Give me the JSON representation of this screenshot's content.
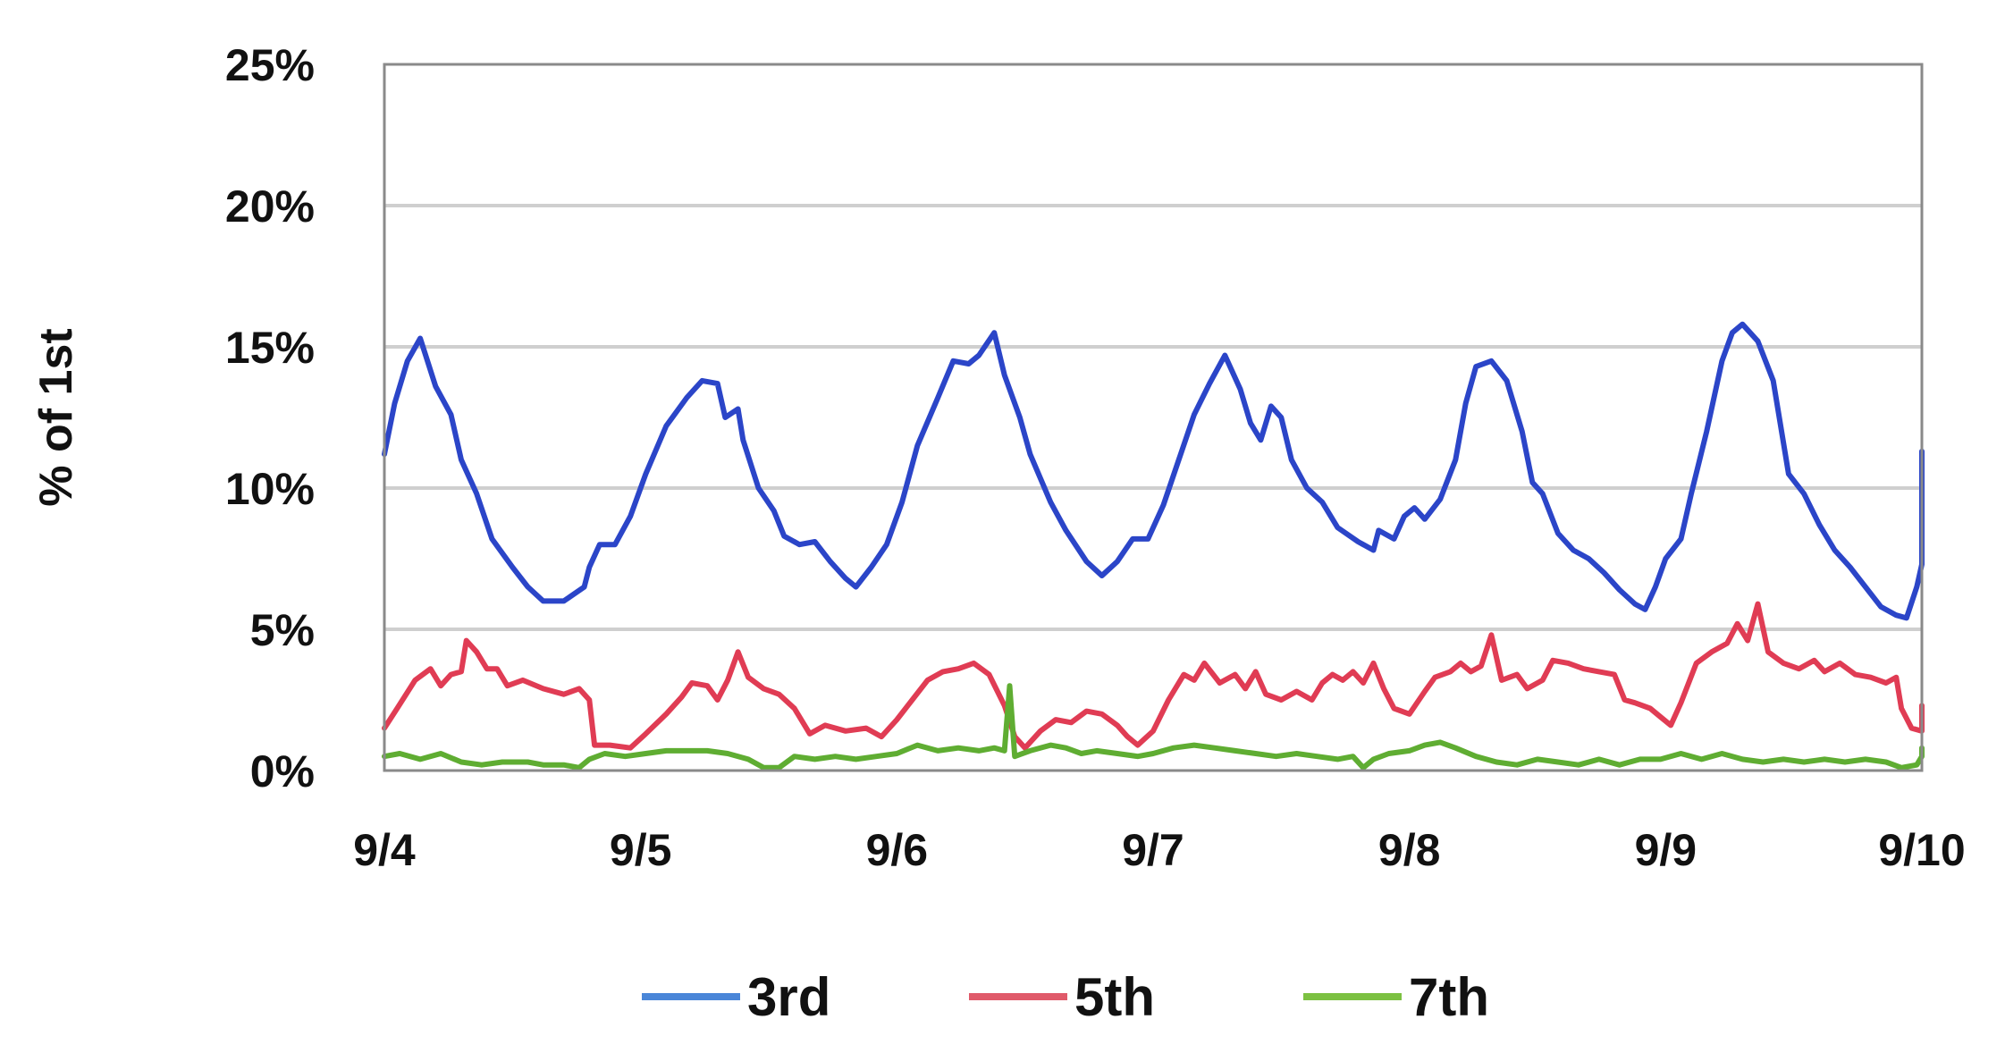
{
  "chart_data": {
    "type": "line",
    "title": "",
    "xlabel": "",
    "ylabel": "% of 1st",
    "ylim": [
      0,
      25
    ],
    "yticks": [
      0,
      5,
      10,
      15,
      20,
      25
    ],
    "ytick_labels": [
      "0%",
      "5%",
      "10%",
      "15%",
      "20%",
      "25%"
    ],
    "xlim": [
      0,
      6
    ],
    "xticks": [
      0,
      1,
      2,
      3,
      4,
      5,
      6
    ],
    "xtick_labels": [
      "9/4",
      "9/5",
      "9/6",
      "9/7",
      "9/8",
      "9/9",
      "9/10"
    ],
    "grid": "horizontal",
    "legend_position": "bottom",
    "series": [
      {
        "name": "3rd",
        "color": "#2b45c8",
        "legend_color": "#4a86d8",
        "points": [
          [
            0,
            11.2
          ],
          [
            0.04,
            13
          ],
          [
            0.09,
            14.5
          ],
          [
            0.14,
            15.3
          ],
          [
            0.2,
            13.6
          ],
          [
            0.26,
            12.6
          ],
          [
            0.3,
            11
          ],
          [
            0.36,
            9.8
          ],
          [
            0.42,
            8.2
          ],
          [
            0.5,
            7.2
          ],
          [
            0.56,
            6.5
          ],
          [
            0.62,
            6
          ],
          [
            0.7,
            6
          ],
          [
            0.78,
            6.5
          ],
          [
            0.8,
            7.2
          ],
          [
            0.84,
            8
          ],
          [
            0.9,
            8
          ],
          [
            0.96,
            9
          ],
          [
            1.02,
            10.5
          ],
          [
            1.1,
            12.2
          ],
          [
            1.18,
            13.2
          ],
          [
            1.24,
            13.8
          ],
          [
            1.3,
            13.7
          ],
          [
            1.33,
            12.5
          ],
          [
            1.38,
            12.8
          ],
          [
            1.4,
            11.7
          ],
          [
            1.46,
            10
          ],
          [
            1.52,
            9.2
          ],
          [
            1.56,
            8.3
          ],
          [
            1.62,
            8
          ],
          [
            1.68,
            8.1
          ],
          [
            1.74,
            7.4
          ],
          [
            1.8,
            6.8
          ],
          [
            1.84,
            6.5
          ],
          [
            1.9,
            7.2
          ],
          [
            1.96,
            8
          ],
          [
            2.02,
            9.5
          ],
          [
            2.08,
            11.5
          ],
          [
            2.16,
            13.2
          ],
          [
            2.22,
            14.5
          ],
          [
            2.28,
            14.4
          ],
          [
            2.32,
            14.7
          ],
          [
            2.38,
            15.5
          ],
          [
            2.42,
            14
          ],
          [
            2.48,
            12.5
          ],
          [
            2.52,
            11.2
          ],
          [
            2.6,
            9.5
          ],
          [
            2.66,
            8.5
          ],
          [
            2.74,
            7.4
          ],
          [
            2.8,
            6.9
          ],
          [
            2.86,
            7.4
          ],
          [
            2.92,
            8.2
          ],
          [
            2.98,
            8.2
          ],
          [
            3.04,
            9.4
          ],
          [
            3.1,
            11
          ],
          [
            3.16,
            12.6
          ],
          [
            3.22,
            13.7
          ],
          [
            3.28,
            14.7
          ],
          [
            3.34,
            13.5
          ],
          [
            3.38,
            12.3
          ],
          [
            3.42,
            11.7
          ],
          [
            3.46,
            12.9
          ],
          [
            3.5,
            12.5
          ],
          [
            3.54,
            11
          ],
          [
            3.6,
            10
          ],
          [
            3.66,
            9.5
          ],
          [
            3.72,
            8.6
          ],
          [
            3.8,
            8.1
          ],
          [
            3.86,
            7.8
          ],
          [
            3.88,
            8.5
          ],
          [
            3.94,
            8.2
          ],
          [
            3.98,
            9
          ],
          [
            4.02,
            9.3
          ],
          [
            4.06,
            8.9
          ],
          [
            4.12,
            9.6
          ],
          [
            4.18,
            11
          ],
          [
            4.22,
            13
          ],
          [
            4.26,
            14.3
          ],
          [
            4.32,
            14.5
          ],
          [
            4.38,
            13.8
          ],
          [
            4.44,
            12
          ],
          [
            4.48,
            10.2
          ],
          [
            4.52,
            9.8
          ],
          [
            4.58,
            8.4
          ],
          [
            4.64,
            7.8
          ],
          [
            4.7,
            7.5
          ],
          [
            4.76,
            7
          ],
          [
            4.82,
            6.4
          ],
          [
            4.88,
            5.9
          ],
          [
            4.92,
            5.7
          ],
          [
            4.96,
            6.5
          ],
          [
            5,
            7.5
          ],
          [
            5.06,
            8.2
          ],
          [
            5.1,
            9.8
          ],
          [
            5.16,
            12
          ],
          [
            5.22,
            14.5
          ],
          [
            5.26,
            15.5
          ],
          [
            5.3,
            15.8
          ],
          [
            5.36,
            15.2
          ],
          [
            5.42,
            13.8
          ],
          [
            5.48,
            10.5
          ],
          [
            5.54,
            9.8
          ],
          [
            5.6,
            8.7
          ],
          [
            5.66,
            7.8
          ],
          [
            5.72,
            7.2
          ],
          [
            5.78,
            6.5
          ],
          [
            5.84,
            5.8
          ],
          [
            5.9,
            5.5
          ],
          [
            5.94,
            5.4
          ],
          [
            5.98,
            6.5
          ],
          [
            6.02,
            7.3
          ],
          [
            6.06,
            8.7
          ],
          [
            6.1,
            10
          ],
          [
            6.12,
            11.3
          ]
        ]
      },
      {
        "name": "5th",
        "color": "#e03c54",
        "legend_color": "#e05a6a",
        "points": [
          [
            0,
            1.5
          ],
          [
            0.05,
            2.2
          ],
          [
            0.12,
            3.2
          ],
          [
            0.18,
            3.6
          ],
          [
            0.22,
            3
          ],
          [
            0.26,
            3.4
          ],
          [
            0.3,
            3.5
          ],
          [
            0.32,
            4.6
          ],
          [
            0.36,
            4.2
          ],
          [
            0.4,
            3.6
          ],
          [
            0.44,
            3.6
          ],
          [
            0.48,
            3
          ],
          [
            0.54,
            3.2
          ],
          [
            0.62,
            2.9
          ],
          [
            0.7,
            2.7
          ],
          [
            0.76,
            2.9
          ],
          [
            0.8,
            2.5
          ],
          [
            0.82,
            0.9
          ],
          [
            0.88,
            0.9
          ],
          [
            0.96,
            0.8
          ],
          [
            1.02,
            1.3
          ],
          [
            1.1,
            2
          ],
          [
            1.16,
            2.6
          ],
          [
            1.2,
            3.1
          ],
          [
            1.26,
            3
          ],
          [
            1.3,
            2.5
          ],
          [
            1.34,
            3.2
          ],
          [
            1.38,
            4.2
          ],
          [
            1.42,
            3.3
          ],
          [
            1.48,
            2.9
          ],
          [
            1.54,
            2.7
          ],
          [
            1.6,
            2.2
          ],
          [
            1.66,
            1.3
          ],
          [
            1.72,
            1.6
          ],
          [
            1.8,
            1.4
          ],
          [
            1.88,
            1.5
          ],
          [
            1.94,
            1.2
          ],
          [
            2,
            1.8
          ],
          [
            2.06,
            2.5
          ],
          [
            2.12,
            3.2
          ],
          [
            2.18,
            3.5
          ],
          [
            2.24,
            3.6
          ],
          [
            2.3,
            3.8
          ],
          [
            2.36,
            3.4
          ],
          [
            2.42,
            2.3
          ],
          [
            2.46,
            1.2
          ],
          [
            2.5,
            0.8
          ],
          [
            2.56,
            1.4
          ],
          [
            2.62,
            1.8
          ],
          [
            2.68,
            1.7
          ],
          [
            2.74,
            2.1
          ],
          [
            2.8,
            2
          ],
          [
            2.86,
            1.6
          ],
          [
            2.9,
            1.2
          ],
          [
            2.94,
            0.9
          ],
          [
            3,
            1.4
          ],
          [
            3.06,
            2.5
          ],
          [
            3.12,
            3.4
          ],
          [
            3.16,
            3.2
          ],
          [
            3.2,
            3.8
          ],
          [
            3.26,
            3.1
          ],
          [
            3.32,
            3.4
          ],
          [
            3.36,
            2.9
          ],
          [
            3.4,
            3.5
          ],
          [
            3.44,
            2.7
          ],
          [
            3.5,
            2.5
          ],
          [
            3.56,
            2.8
          ],
          [
            3.62,
            2.5
          ],
          [
            3.66,
            3.1
          ],
          [
            3.7,
            3.4
          ],
          [
            3.74,
            3.2
          ],
          [
            3.78,
            3.5
          ],
          [
            3.82,
            3.1
          ],
          [
            3.86,
            3.8
          ],
          [
            3.9,
            2.9
          ],
          [
            3.94,
            2.2
          ],
          [
            4,
            2
          ],
          [
            4.06,
            2.8
          ],
          [
            4.1,
            3.3
          ],
          [
            4.16,
            3.5
          ],
          [
            4.2,
            3.8
          ],
          [
            4.24,
            3.5
          ],
          [
            4.28,
            3.7
          ],
          [
            4.32,
            4.8
          ],
          [
            4.36,
            3.2
          ],
          [
            4.42,
            3.4
          ],
          [
            4.46,
            2.9
          ],
          [
            4.52,
            3.2
          ],
          [
            4.56,
            3.9
          ],
          [
            4.62,
            3.8
          ],
          [
            4.68,
            3.6
          ],
          [
            4.74,
            3.5
          ],
          [
            4.8,
            3.4
          ],
          [
            4.84,
            2.5
          ],
          [
            4.88,
            2.4
          ],
          [
            4.94,
            2.2
          ],
          [
            4.98,
            1.9
          ],
          [
            5.02,
            1.6
          ],
          [
            5.06,
            2.4
          ],
          [
            5.12,
            3.8
          ],
          [
            5.18,
            4.2
          ],
          [
            5.24,
            4.5
          ],
          [
            5.28,
            5.2
          ],
          [
            5.32,
            4.6
          ],
          [
            5.36,
            5.9
          ],
          [
            5.4,
            4.2
          ],
          [
            5.46,
            3.8
          ],
          [
            5.52,
            3.6
          ],
          [
            5.58,
            3.9
          ],
          [
            5.62,
            3.5
          ],
          [
            5.68,
            3.8
          ],
          [
            5.74,
            3.4
          ],
          [
            5.8,
            3.3
          ],
          [
            5.86,
            3.1
          ],
          [
            5.9,
            3.3
          ],
          [
            5.92,
            2.2
          ],
          [
            5.96,
            1.5
          ],
          [
            6.02,
            1.4
          ],
          [
            6.06,
            2.1
          ],
          [
            6.1,
            1.9
          ],
          [
            6.12,
            2.3
          ]
        ]
      },
      {
        "name": "7th",
        "color": "#5fad32",
        "legend_color": "#7cc142",
        "points": [
          [
            0,
            0.5
          ],
          [
            0.06,
            0.6
          ],
          [
            0.14,
            0.4
          ],
          [
            0.22,
            0.6
          ],
          [
            0.3,
            0.3
          ],
          [
            0.38,
            0.2
          ],
          [
            0.46,
            0.3
          ],
          [
            0.56,
            0.3
          ],
          [
            0.62,
            0.2
          ],
          [
            0.7,
            0.2
          ],
          [
            0.76,
            0.1
          ],
          [
            0.8,
            0.4
          ],
          [
            0.86,
            0.6
          ],
          [
            0.94,
            0.5
          ],
          [
            1.02,
            0.6
          ],
          [
            1.1,
            0.7
          ],
          [
            1.18,
            0.7
          ],
          [
            1.26,
            0.7
          ],
          [
            1.34,
            0.6
          ],
          [
            1.42,
            0.4
          ],
          [
            1.48,
            0.1
          ],
          [
            1.54,
            0.1
          ],
          [
            1.6,
            0.5
          ],
          [
            1.68,
            0.4
          ],
          [
            1.76,
            0.5
          ],
          [
            1.84,
            0.4
          ],
          [
            1.92,
            0.5
          ],
          [
            2,
            0.6
          ],
          [
            2.08,
            0.9
          ],
          [
            2.16,
            0.7
          ],
          [
            2.24,
            0.8
          ],
          [
            2.32,
            0.7
          ],
          [
            2.38,
            0.8
          ],
          [
            2.42,
            0.7
          ],
          [
            2.44,
            3
          ],
          [
            2.46,
            0.5
          ],
          [
            2.52,
            0.7
          ],
          [
            2.6,
            0.9
          ],
          [
            2.66,
            0.8
          ],
          [
            2.72,
            0.6
          ],
          [
            2.78,
            0.7
          ],
          [
            2.86,
            0.6
          ],
          [
            2.94,
            0.5
          ],
          [
            3,
            0.6
          ],
          [
            3.08,
            0.8
          ],
          [
            3.16,
            0.9
          ],
          [
            3.24,
            0.8
          ],
          [
            3.32,
            0.7
          ],
          [
            3.4,
            0.6
          ],
          [
            3.48,
            0.5
          ],
          [
            3.56,
            0.6
          ],
          [
            3.64,
            0.5
          ],
          [
            3.72,
            0.4
          ],
          [
            3.78,
            0.5
          ],
          [
            3.82,
            0.1
          ],
          [
            3.86,
            0.4
          ],
          [
            3.92,
            0.6
          ],
          [
            4,
            0.7
          ],
          [
            4.06,
            0.9
          ],
          [
            4.12,
            1
          ],
          [
            4.18,
            0.8
          ],
          [
            4.26,
            0.5
          ],
          [
            4.34,
            0.3
          ],
          [
            4.42,
            0.2
          ],
          [
            4.5,
            0.4
          ],
          [
            4.58,
            0.3
          ],
          [
            4.66,
            0.2
          ],
          [
            4.74,
            0.4
          ],
          [
            4.82,
            0.2
          ],
          [
            4.9,
            0.4
          ],
          [
            4.98,
            0.4
          ],
          [
            5.06,
            0.6
          ],
          [
            5.14,
            0.4
          ],
          [
            5.22,
            0.6
          ],
          [
            5.3,
            0.4
          ],
          [
            5.38,
            0.3
          ],
          [
            5.46,
            0.4
          ],
          [
            5.54,
            0.3
          ],
          [
            5.62,
            0.4
          ],
          [
            5.7,
            0.3
          ],
          [
            5.78,
            0.4
          ],
          [
            5.86,
            0.3
          ],
          [
            5.92,
            0.1
          ],
          [
            5.98,
            0.2
          ],
          [
            6.04,
            0.5
          ],
          [
            6.08,
            0.6
          ],
          [
            6.12,
            0.8
          ]
        ]
      }
    ]
  }
}
